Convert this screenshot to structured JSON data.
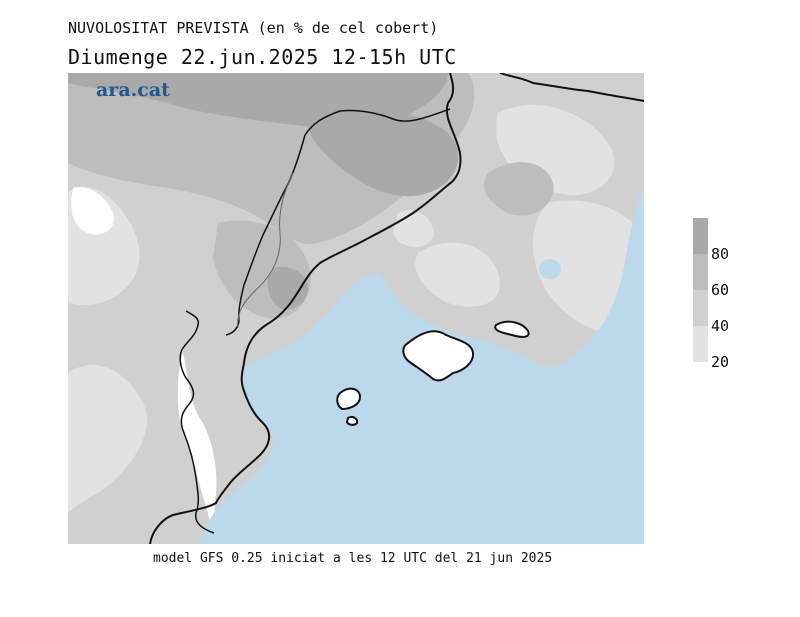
{
  "header": {
    "title": "NUVOLOSITAT PREVISTA (en % de cel cobert)",
    "subtitle": "Diumenge 22.jun.2025 12-15h UTC"
  },
  "logo": {
    "text": "ara.cat"
  },
  "footer": {
    "text": "model GFS 0.25 iniciat a les 12 UTC del 21 jun 2025"
  },
  "legend": {
    "labels": [
      "80",
      "60",
      "40",
      "20"
    ],
    "colors": [
      "#a9a9a9",
      "#bdbdbd",
      "#d0d0d0",
      "#e2e2e2"
    ]
  },
  "map_colors": {
    "sea": "#bcd9ec",
    "cloud_20_40": "#e2e2e2",
    "cloud_40_60": "#d0d0d0",
    "cloud_60_80": "#bdbdbd",
    "cloud_80_plus": "#a9a9a9",
    "clear_land": "#ffffff"
  }
}
